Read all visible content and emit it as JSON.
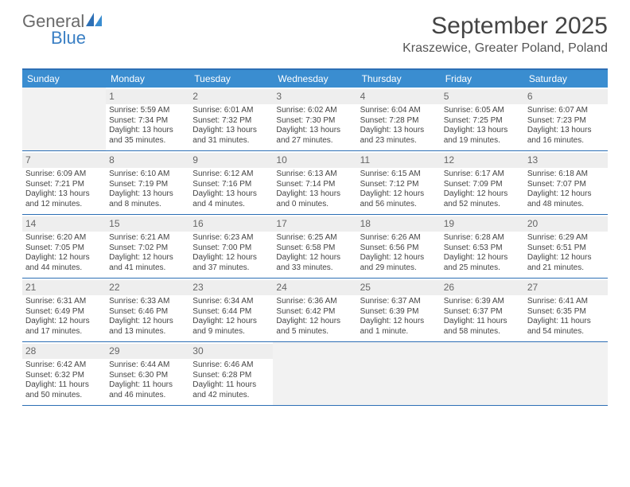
{
  "brand": {
    "word1": "General",
    "word2": "Blue"
  },
  "title": "September 2025",
  "location": "Kraszewice, Greater Poland, Poland",
  "colors": {
    "header_bar": "#3a8dd0",
    "border": "#2d6fb5",
    "daynum_bg": "#eeeeee",
    "empty_bg": "#f2f2f2",
    "text": "#444444",
    "brand_gray": "#6a6a6a",
    "brand_blue": "#3a7fc4"
  },
  "weekdays": [
    "Sunday",
    "Monday",
    "Tuesday",
    "Wednesday",
    "Thursday",
    "Friday",
    "Saturday"
  ],
  "weeks": [
    [
      null,
      {
        "n": "1",
        "sr": "5:59 AM",
        "ss": "7:34 PM",
        "dl": "13 hours and 35 minutes."
      },
      {
        "n": "2",
        "sr": "6:01 AM",
        "ss": "7:32 PM",
        "dl": "13 hours and 31 minutes."
      },
      {
        "n": "3",
        "sr": "6:02 AM",
        "ss": "7:30 PM",
        "dl": "13 hours and 27 minutes."
      },
      {
        "n": "4",
        "sr": "6:04 AM",
        "ss": "7:28 PM",
        "dl": "13 hours and 23 minutes."
      },
      {
        "n": "5",
        "sr": "6:05 AM",
        "ss": "7:25 PM",
        "dl": "13 hours and 19 minutes."
      },
      {
        "n": "6",
        "sr": "6:07 AM",
        "ss": "7:23 PM",
        "dl": "13 hours and 16 minutes."
      }
    ],
    [
      {
        "n": "7",
        "sr": "6:09 AM",
        "ss": "7:21 PM",
        "dl": "13 hours and 12 minutes."
      },
      {
        "n": "8",
        "sr": "6:10 AM",
        "ss": "7:19 PM",
        "dl": "13 hours and 8 minutes."
      },
      {
        "n": "9",
        "sr": "6:12 AM",
        "ss": "7:16 PM",
        "dl": "13 hours and 4 minutes."
      },
      {
        "n": "10",
        "sr": "6:13 AM",
        "ss": "7:14 PM",
        "dl": "13 hours and 0 minutes."
      },
      {
        "n": "11",
        "sr": "6:15 AM",
        "ss": "7:12 PM",
        "dl": "12 hours and 56 minutes."
      },
      {
        "n": "12",
        "sr": "6:17 AM",
        "ss": "7:09 PM",
        "dl": "12 hours and 52 minutes."
      },
      {
        "n": "13",
        "sr": "6:18 AM",
        "ss": "7:07 PM",
        "dl": "12 hours and 48 minutes."
      }
    ],
    [
      {
        "n": "14",
        "sr": "6:20 AM",
        "ss": "7:05 PM",
        "dl": "12 hours and 44 minutes."
      },
      {
        "n": "15",
        "sr": "6:21 AM",
        "ss": "7:02 PM",
        "dl": "12 hours and 41 minutes."
      },
      {
        "n": "16",
        "sr": "6:23 AM",
        "ss": "7:00 PM",
        "dl": "12 hours and 37 minutes."
      },
      {
        "n": "17",
        "sr": "6:25 AM",
        "ss": "6:58 PM",
        "dl": "12 hours and 33 minutes."
      },
      {
        "n": "18",
        "sr": "6:26 AM",
        "ss": "6:56 PM",
        "dl": "12 hours and 29 minutes."
      },
      {
        "n": "19",
        "sr": "6:28 AM",
        "ss": "6:53 PM",
        "dl": "12 hours and 25 minutes."
      },
      {
        "n": "20",
        "sr": "6:29 AM",
        "ss": "6:51 PM",
        "dl": "12 hours and 21 minutes."
      }
    ],
    [
      {
        "n": "21",
        "sr": "6:31 AM",
        "ss": "6:49 PM",
        "dl": "12 hours and 17 minutes."
      },
      {
        "n": "22",
        "sr": "6:33 AM",
        "ss": "6:46 PM",
        "dl": "12 hours and 13 minutes."
      },
      {
        "n": "23",
        "sr": "6:34 AM",
        "ss": "6:44 PM",
        "dl": "12 hours and 9 minutes."
      },
      {
        "n": "24",
        "sr": "6:36 AM",
        "ss": "6:42 PM",
        "dl": "12 hours and 5 minutes."
      },
      {
        "n": "25",
        "sr": "6:37 AM",
        "ss": "6:39 PM",
        "dl": "12 hours and 1 minute."
      },
      {
        "n": "26",
        "sr": "6:39 AM",
        "ss": "6:37 PM",
        "dl": "11 hours and 58 minutes."
      },
      {
        "n": "27",
        "sr": "6:41 AM",
        "ss": "6:35 PM",
        "dl": "11 hours and 54 minutes."
      }
    ],
    [
      {
        "n": "28",
        "sr": "6:42 AM",
        "ss": "6:32 PM",
        "dl": "11 hours and 50 minutes."
      },
      {
        "n": "29",
        "sr": "6:44 AM",
        "ss": "6:30 PM",
        "dl": "11 hours and 46 minutes."
      },
      {
        "n": "30",
        "sr": "6:46 AM",
        "ss": "6:28 PM",
        "dl": "11 hours and 42 minutes."
      },
      null,
      null,
      null,
      null
    ]
  ],
  "labels": {
    "sunrise": "Sunrise:",
    "sunset": "Sunset:",
    "daylight": "Daylight:"
  }
}
